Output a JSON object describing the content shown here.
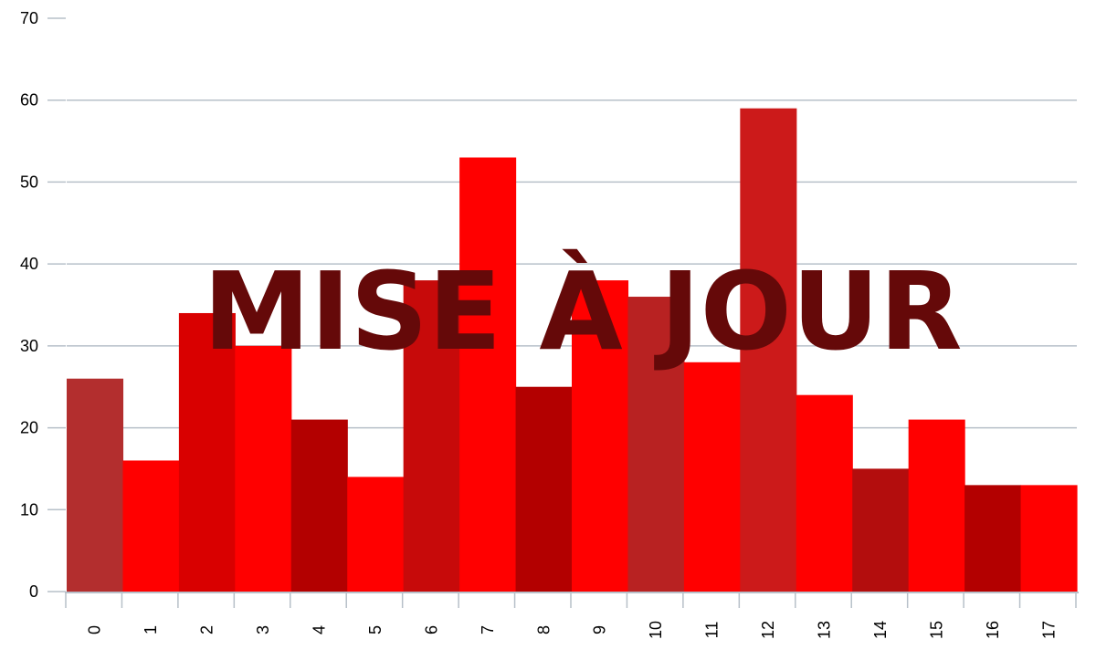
{
  "chart_data": {
    "type": "bar",
    "title": "",
    "xlabel": "",
    "ylabel": "",
    "categories": [
      "0",
      "1",
      "2",
      "3",
      "4",
      "5",
      "6",
      "7",
      "8",
      "9",
      "10",
      "11",
      "12",
      "13",
      "14",
      "15",
      "16",
      "17"
    ],
    "values": [
      26,
      16,
      34,
      30,
      21,
      14,
      38,
      53,
      25,
      38,
      36,
      28,
      59,
      24,
      15,
      21,
      13,
      13
    ],
    "bar_colors": [
      "#b32e2e",
      "#ff0000",
      "#d90000",
      "#ff0000",
      "#b30000",
      "#ff0000",
      "#c70a0a",
      "#ff0000",
      "#b30000",
      "#ff0000",
      "#b82222",
      "#ff0000",
      "#cc1a1a",
      "#ff0000",
      "#b30d0d",
      "#ff0000",
      "#b30000",
      "#ff0000"
    ],
    "ylim": [
      0,
      70
    ],
    "yticks": [
      0,
      10,
      20,
      30,
      40,
      50,
      60,
      70
    ],
    "grid": true,
    "legend": "none",
    "gridline_color": "#b7c0c9",
    "axis_color": "#b7c0c9"
  },
  "overlay": {
    "text": "MISE À JOUR",
    "color": "#650909"
  }
}
